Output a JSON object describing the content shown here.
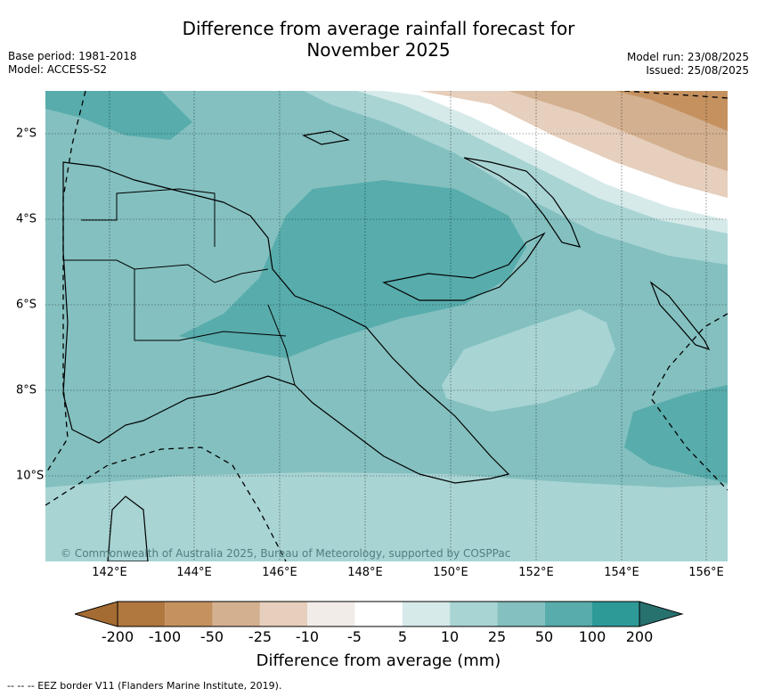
{
  "title_line1": "Difference from average rainfall forecast for",
  "title_line2": "November 2025",
  "base_period": "Base period: 1981-2018",
  "model": "Model: ACCESS-S2",
  "model_run": "Model run: 23/08/2025",
  "issued": "Issued: 25/08/2025",
  "lon_labels": [
    "142°E",
    "144°E",
    "146°E",
    "148°E",
    "150°E",
    "152°E",
    "154°E",
    "156°E"
  ],
  "lat_labels": [
    "2°S",
    "4°S",
    "6°S",
    "8°S",
    "10°S"
  ],
  "colorbar": {
    "label": "Difference from average (mm)",
    "ticks": [
      "-200",
      "-100",
      "-50",
      "-25",
      "-10",
      "-5",
      "5",
      "10",
      "25",
      "50",
      "100",
      "200"
    ],
    "colors": [
      "#a46b33",
      "#b0773e",
      "#c4915f",
      "#d3b08f",
      "#e6cfbd",
      "#f2ece8",
      "#ffffff",
      "#d6eaea",
      "#a9d4d4",
      "#84c0c0",
      "#58acac",
      "#2e9a98",
      "#27716f"
    ]
  },
  "copyright": "© Commonwealth of Australia 2025, Bureau of Meteorology, supported by COSPPac",
  "footer": "-- -- -- EEZ border V11 (Flanders Marine Institute, 2019)."
}
